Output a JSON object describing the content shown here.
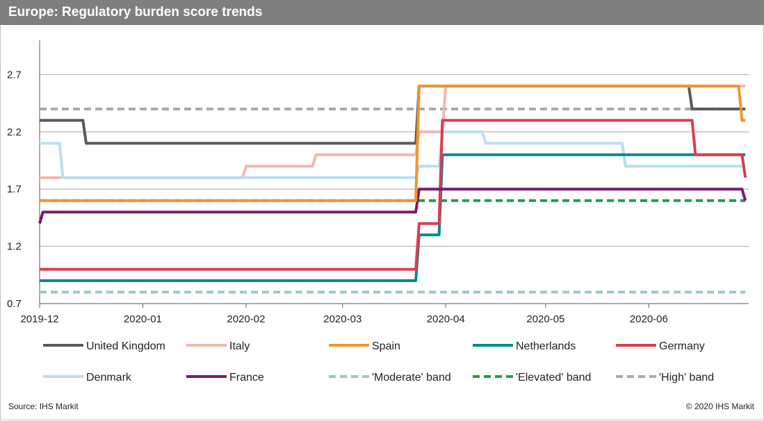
{
  "chart_data": {
    "type": "line",
    "title": "Europe: Regulatory burden score trends",
    "xlabel": "",
    "ylabel": "",
    "ylim": [
      0.7,
      3.0
    ],
    "xlim": [
      "2019-12-01",
      "2020-07-01"
    ],
    "y_ticks": [
      "0.7",
      "1.2",
      "1.7",
      "2.2",
      "2.7"
    ],
    "x_ticks": [
      "2019-12",
      "2020-01",
      "2020-02",
      "2020-03",
      "2020-04",
      "2020-05",
      "2020-06"
    ],
    "x_tick_dates": [
      "2019-12-01",
      "2020-01-01",
      "2020-02-01",
      "2020-03-01",
      "2020-04-01",
      "2020-05-01",
      "2020-06-01"
    ],
    "grid": true,
    "legend_position": "bottom",
    "series": [
      {
        "name": "United Kingdom",
        "color": "#595959",
        "dash": "solid",
        "x": [
          "2019-12-01",
          "2019-12-14",
          "2019-12-15",
          "2020-03-23",
          "2020-03-24",
          "2020-06-13",
          "2020-06-14",
          "2020-06-30"
        ],
        "y": [
          2.3,
          2.3,
          2.1,
          2.1,
          2.6,
          2.6,
          2.4,
          2.4
        ]
      },
      {
        "name": "Italy",
        "color": "#f4b6b0",
        "dash": "solid",
        "x": [
          "2019-12-01",
          "2020-01-31",
          "2020-02-01",
          "2020-02-21",
          "2020-02-22",
          "2020-03-23",
          "2020-03-24",
          "2020-03-31",
          "2020-04-01",
          "2020-06-30"
        ],
        "y": [
          1.8,
          1.8,
          1.9,
          1.9,
          2.0,
          2.0,
          2.2,
          2.2,
          2.6,
          2.6
        ]
      },
      {
        "name": "Spain",
        "color": "#f0962d",
        "dash": "solid",
        "x": [
          "2019-12-01",
          "2020-03-23",
          "2020-03-24",
          "2020-06-28",
          "2020-06-29",
          "2020-06-30"
        ],
        "y": [
          1.6,
          1.6,
          2.6,
          2.6,
          2.3,
          2.3
        ]
      },
      {
        "name": "Netherlands",
        "color": "#008c8c",
        "dash": "solid",
        "x": [
          "2019-12-01",
          "2020-03-23",
          "2020-03-24",
          "2020-03-30",
          "2020-03-31",
          "2020-06-30"
        ],
        "y": [
          0.9,
          0.9,
          1.3,
          1.3,
          2.0,
          2.0
        ]
      },
      {
        "name": "Germany",
        "color": "#dc3c50",
        "dash": "solid",
        "x": [
          "2019-12-01",
          "2020-03-23",
          "2020-03-24",
          "2020-03-30",
          "2020-03-31",
          "2020-06-14",
          "2020-06-15",
          "2020-06-29",
          "2020-06-30"
        ],
        "y": [
          1.0,
          1.0,
          1.4,
          1.4,
          2.3,
          2.3,
          2.0,
          2.0,
          1.8
        ]
      },
      {
        "name": "Denmark",
        "color": "#b8e0f0",
        "dash": "solid",
        "x": [
          "2019-12-01",
          "2019-12-07",
          "2019-12-08",
          "2020-03-23",
          "2020-03-24",
          "2020-03-30",
          "2020-03-31",
          "2020-04-12",
          "2020-04-13",
          "2020-05-24",
          "2020-05-25",
          "2020-06-30"
        ],
        "y": [
          2.1,
          2.1,
          1.8,
          1.8,
          1.9,
          1.9,
          2.2,
          2.2,
          2.1,
          2.1,
          1.9,
          1.9
        ]
      },
      {
        "name": "France",
        "color": "#7a1a6e",
        "dash": "solid",
        "x": [
          "2019-12-01",
          "2019-12-02",
          "2020-03-23",
          "2020-03-24",
          "2020-06-29",
          "2020-06-30"
        ],
        "y": [
          1.4,
          1.5,
          1.5,
          1.7,
          1.7,
          1.6
        ]
      },
      {
        "name": "'Moderate' band",
        "color": "#9cc7c9",
        "dash": "dashed",
        "x": [
          "2019-12-01",
          "2020-06-30"
        ],
        "y": [
          0.8,
          0.8
        ]
      },
      {
        "name": "'Elevated' band",
        "color": "#1aa04a",
        "dash": "dashed",
        "x": [
          "2019-12-01",
          "2020-06-30"
        ],
        "y": [
          1.6,
          1.6
        ]
      },
      {
        "name": "'High' band",
        "color": "#aaaaaa",
        "dash": "dashed",
        "x": [
          "2019-12-01",
          "2020-06-30"
        ],
        "y": [
          2.4,
          2.4
        ]
      }
    ]
  },
  "footer": {
    "source": "Source: IHS Markit",
    "copyright": "© 2020 IHS Markit"
  }
}
